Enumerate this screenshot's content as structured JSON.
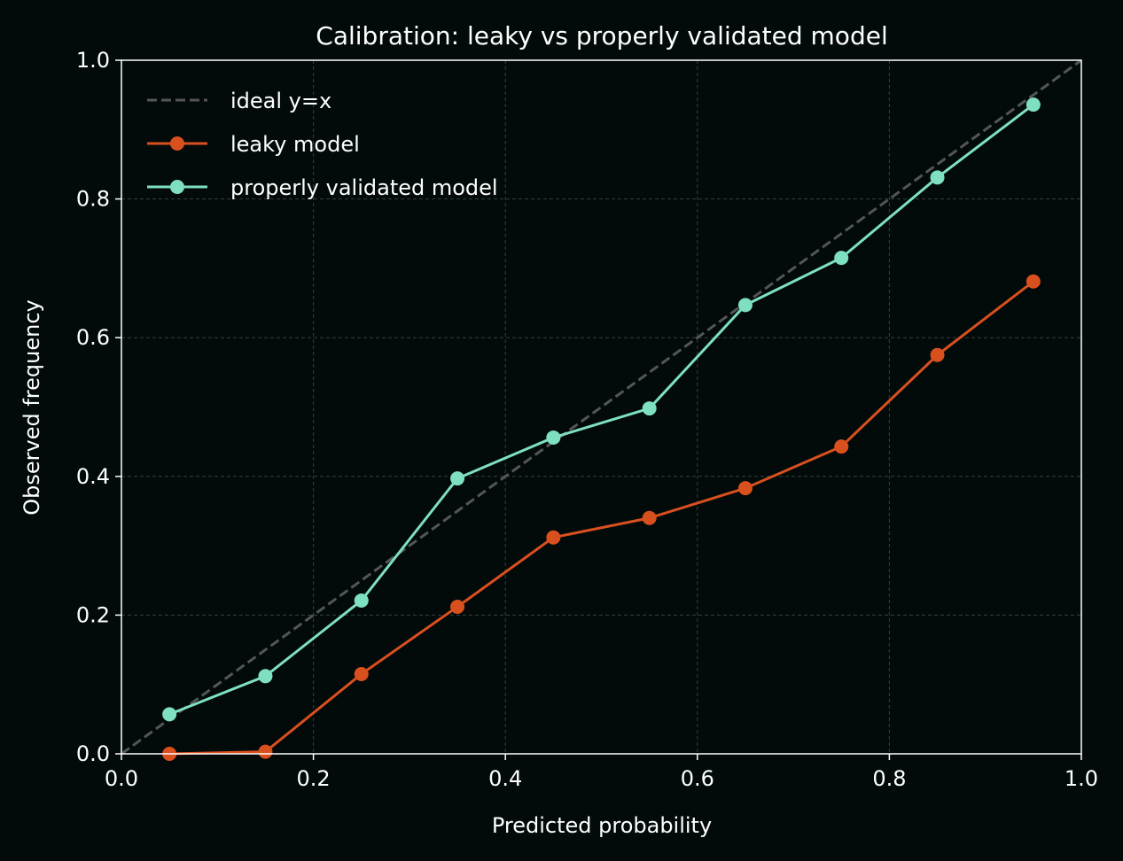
{
  "chart_data": {
    "type": "line",
    "title": "Calibration: leaky vs properly validated model",
    "xlabel": "Predicted probability",
    "ylabel": "Observed frequency",
    "xlim": [
      0,
      1
    ],
    "ylim": [
      0,
      1
    ],
    "xticks": [
      "0.0",
      "0.2",
      "0.4",
      "0.6",
      "0.8",
      "1.0"
    ],
    "yticks": [
      "0.0",
      "0.2",
      "0.4",
      "0.6",
      "0.8",
      "1.0"
    ],
    "grid": true,
    "legend_position": "top-left",
    "background_color": "#020a0a",
    "x": [
      0.05,
      0.15,
      0.25,
      0.35,
      0.45,
      0.55,
      0.65,
      0.75,
      0.85,
      0.95
    ],
    "reference_line": {
      "name": "ideal y=x",
      "x": [
        0,
        1
      ],
      "y": [
        0,
        1
      ],
      "color": "#555555",
      "style": "dashed"
    },
    "series": [
      {
        "name": "leaky model",
        "color": "#d9501f",
        "marker": "circle",
        "values": [
          0.0,
          0.003,
          0.115,
          0.212,
          0.312,
          0.34,
          0.383,
          0.443,
          0.575,
          0.681
        ]
      },
      {
        "name": "properly validated model",
        "color": "#7ee0c1",
        "marker": "circle",
        "values": [
          0.057,
          0.112,
          0.221,
          0.397,
          0.456,
          0.498,
          0.647,
          0.715,
          0.831,
          0.936
        ]
      }
    ]
  }
}
